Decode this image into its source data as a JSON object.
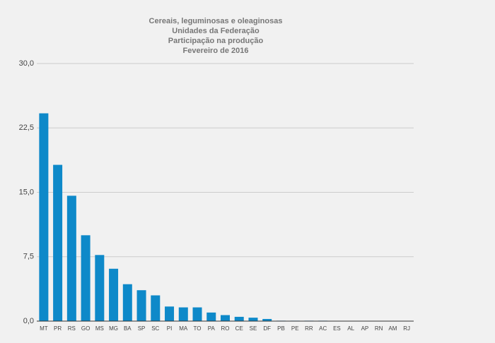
{
  "chart_data": {
    "type": "bar",
    "title": "Cereais, leguminosas e oleaginosas",
    "subtitle": [
      "Unidades da Federação",
      "Participação na produção",
      "Fevereiro de 2016"
    ],
    "categories": [
      "MT",
      "PR",
      "RS",
      "GO",
      "MS",
      "MG",
      "BA",
      "SP",
      "SC",
      "PI",
      "MA",
      "TO",
      "PA",
      "RO",
      "CE",
      "SE",
      "DF",
      "PB",
      "PE",
      "RR",
      "AC",
      "ES",
      "AL",
      "AP",
      "RN",
      "AM",
      "RJ"
    ],
    "values": [
      24.2,
      18.2,
      14.6,
      10.0,
      7.7,
      6.1,
      4.3,
      3.6,
      3.0,
      1.7,
      1.6,
      1.6,
      1.0,
      0.7,
      0.5,
      0.4,
      0.25,
      0.05,
      0.05,
      0.05,
      0.05,
      0.01,
      0,
      0,
      0,
      0,
      0
    ],
    "color": "#0e89c9",
    "ylim": [
      0,
      30
    ],
    "yticks": [
      {
        "value": 0,
        "label": "0,0"
      },
      {
        "value": 7.5,
        "label": "7,5"
      },
      {
        "value": 15,
        "label": "15,0"
      },
      {
        "value": 22.5,
        "label": "22,5"
      },
      {
        "value": 30,
        "label": "30,0"
      }
    ],
    "grid": true
  }
}
